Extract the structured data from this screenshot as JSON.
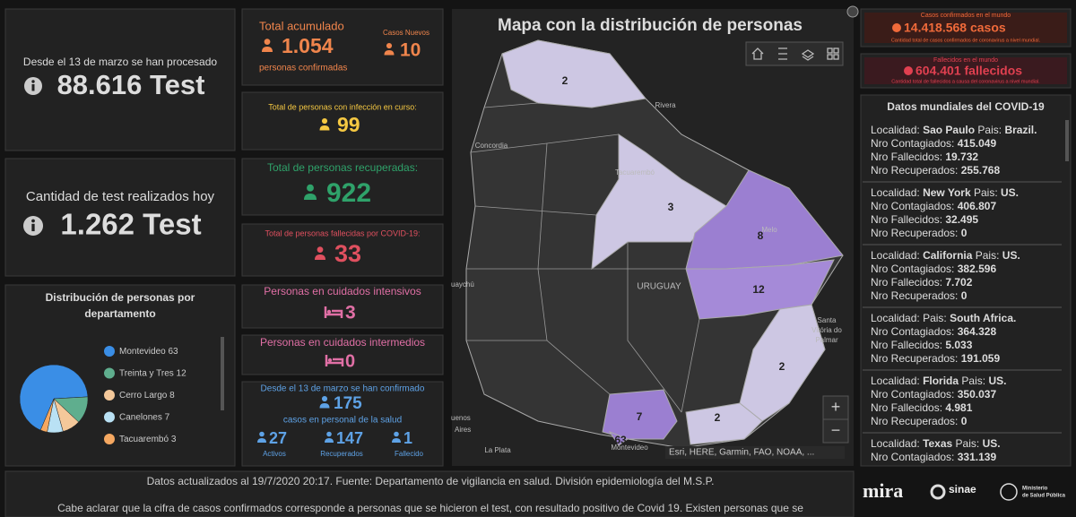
{
  "left": {
    "processed": {
      "label": "Desde el 13 de marzo se han procesado",
      "value": "88.616 Test"
    },
    "today": {
      "label": "Cantidad de test realizados hoy",
      "value": "1.262 Test"
    }
  },
  "chart_data": {
    "type": "pie",
    "title": "Distribución de personas por departamento",
    "categories": [
      "Montevideo",
      "Treinta y Tres",
      "Cerro Largo",
      "Canelones",
      "Tacuarembó"
    ],
    "values": [
      63,
      12,
      8,
      7,
      3
    ],
    "colors": [
      "#3a8ee6",
      "#5fae8e",
      "#f4c89a",
      "#b9e1f4",
      "#f5a861"
    ]
  },
  "cards": {
    "total": {
      "label": "Total acumulado",
      "value": "1.054",
      "sub": "personas confirmadas",
      "new_label": "Casos Nuevos",
      "new_value": "10"
    },
    "active": {
      "label": "Total de personas con infección en curso:",
      "value": "99"
    },
    "recovered": {
      "label": "Total de personas recuperadas:",
      "value": "922"
    },
    "deceased": {
      "label": "Total de personas fallecidas por COVID-19:",
      "value": "33"
    },
    "intensive": {
      "label": "Personas en cuidados intensivos",
      "value": "3"
    },
    "intermediate": {
      "label": "Personas en cuidados intermedios",
      "value": "0"
    },
    "health": {
      "label": "Desde el 13 de marzo se han confirmado",
      "value": "175",
      "sub": "casos en personal de la salud",
      "items": [
        {
          "value": "27",
          "label": "Activos"
        },
        {
          "value": "147",
          "label": "Recuperados"
        },
        {
          "value": "1",
          "label": "Fallecido"
        }
      ]
    }
  },
  "map": {
    "title": "Mapa con la distribución de personas",
    "counts": [
      "2",
      "3",
      "8",
      "12",
      "2",
      "2",
      "7",
      "63"
    ],
    "places": [
      "Rivera",
      "Concordia",
      "Tacuarembó",
      "Melo",
      "URUGUAY",
      "uaychú",
      "Santa",
      "Vitória do",
      "Palmar",
      "uenos",
      "Aires",
      "La Plata",
      "Montevideo"
    ],
    "attribution": "Esri, HERE, Garmin, FAO, NOAA, ...",
    "zoom_in": "+",
    "zoom_out": "−"
  },
  "world": {
    "cases": {
      "label": "Casos confirmados en el mundo",
      "value": "14.418.568 casos",
      "sub": "Cantidad total de casos confirmados de coronavirus a nivel mundial."
    },
    "deaths": {
      "label": "Fallecidos en el mundo",
      "value": "604.401 fallecidos",
      "sub": "Cantidad total de fallecidos a causa del coronavirus a nivel mundial."
    },
    "list_title": "Datos mundiales del COVID-19",
    "field_labels": {
      "place": "Localidad:",
      "country": "Pais:",
      "cases": "Nro Contagiados:",
      "deaths": "Nro Fallecidos:",
      "recovered": "Nro Recuperados:"
    },
    "entries": [
      {
        "place": "Sao Paulo",
        "country": "Brazil.",
        "cases": "415.049",
        "deaths": "19.732",
        "recovered": "255.768"
      },
      {
        "place": "New York",
        "country": "US.",
        "cases": "406.807",
        "deaths": "32.495",
        "recovered": "0"
      },
      {
        "place": "California",
        "country": "US.",
        "cases": "382.596",
        "deaths": "7.702",
        "recovered": "0"
      },
      {
        "country": "South Africa.",
        "cases": "364.328",
        "deaths": "5.033",
        "recovered": "191.059"
      },
      {
        "place": "Florida",
        "country": "US.",
        "cases": "350.037",
        "deaths": "4.981",
        "recovered": "0"
      },
      {
        "place": "Texas",
        "country": "US.",
        "cases": "331.139"
      }
    ]
  },
  "footer": {
    "line1": "Datos actualizados al 19/7/2020 20:17. Fuente: Departamento de vigilancia en salud. División epidemiología del M.S.P.",
    "line2": "Cabe aclarar que la cifra de casos confirmados corresponde a personas que se hicieron el test, con resultado positivo de Covid 19. Existen personas que se",
    "logos": [
      "mira",
      "sinae",
      "Ministerio",
      "de Salud Pública"
    ]
  }
}
